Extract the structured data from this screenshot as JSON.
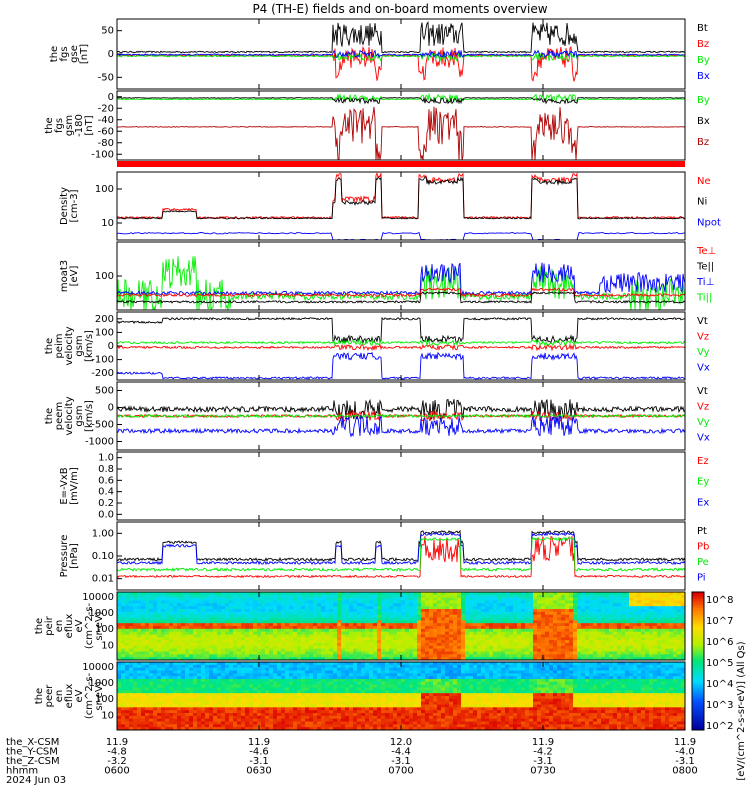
{
  "title": "P4 (TH-E) fields and on-board moments overview",
  "colors": {
    "black": "#000000",
    "red": "#ff0000",
    "green": "#00ee00",
    "blue": "#0000ff",
    "magenta": "#cc00cc",
    "darkred": "#b00000"
  },
  "chart_data": [
    {
      "id": "fgs_gse",
      "type": "line",
      "ylabel": [
        "the",
        "fgs",
        "gse",
        "[nT]"
      ],
      "ylim": [
        -100,
        100
      ],
      "yticks": [
        "50",
        "0",
        "-50"
      ],
      "series": [
        {
          "name": "Bt",
          "color": "#000000"
        },
        {
          "name": "Bz",
          "color": "#ff0000"
        },
        {
          "name": "By",
          "color": "#00ee00"
        },
        {
          "name": "Bx",
          "color": "#0000ff"
        }
      ]
    },
    {
      "id": "fgs_gsm",
      "type": "line",
      "ylabel": [
        "the",
        "fgs",
        "gsm",
        "-180",
        "[nT]"
      ],
      "ylim": [
        -110,
        10
      ],
      "yticks": [
        "0",
        "-20",
        "-40",
        "-60",
        "-80",
        "-100"
      ],
      "series": [
        {
          "name": "By",
          "color": "#00ee00"
        },
        {
          "name": "Bx",
          "color": "#000000"
        },
        {
          "name": "Bz",
          "color": "#b00000"
        }
      ]
    },
    {
      "id": "density",
      "type": "line",
      "log": true,
      "ylabel": [
        "Density",
        "[cm-3]"
      ],
      "ylim": [
        3,
        130
      ],
      "yticks": [
        "100",
        "10"
      ],
      "series": [
        {
          "name": "Ne",
          "color": "#ff0000"
        },
        {
          "name": "Ni",
          "color": "#000000"
        },
        {
          "name": "Npot",
          "color": "#0000ff"
        }
      ]
    },
    {
      "id": "temp",
      "type": "line",
      "log": true,
      "ylabel": [
        "moat3",
        "[eV]"
      ],
      "ylim": [
        20,
        600
      ],
      "yticks": [
        "100"
      ],
      "series": [
        {
          "name": "Te⊥",
          "color": "#ff0000"
        },
        {
          "name": "Te||",
          "color": "#000000"
        },
        {
          "name": "Ti⊥",
          "color": "#0000ff"
        },
        {
          "name": "Ti||",
          "color": "#00ee00"
        }
      ]
    },
    {
      "id": "peim_vel",
      "type": "line",
      "ylabel": [
        "the",
        "peim",
        "velocity",
        "gsm",
        "[km/s]"
      ],
      "ylim": [
        -300,
        300
      ],
      "yticks": [
        "200",
        "100",
        "0",
        "-100",
        "-200"
      ],
      "series": [
        {
          "name": "Vt",
          "color": "#000000"
        },
        {
          "name": "Vz",
          "color": "#ff0000"
        },
        {
          "name": "Vy",
          "color": "#00ee00"
        },
        {
          "name": "Vx",
          "color": "#0000ff"
        }
      ]
    },
    {
      "id": "peem_vel",
      "type": "line",
      "ylabel": [
        "the",
        "peem",
        "velocity",
        "gsm",
        "[km/s]"
      ],
      "ylim": [
        -1500,
        1000
      ],
      "yticks": [
        "500",
        "0",
        "-500",
        "-1000"
      ],
      "series": [
        {
          "name": "Vt",
          "color": "#000000"
        },
        {
          "name": "Vz",
          "color": "#ff0000"
        },
        {
          "name": "Vy",
          "color": "#00ee00"
        },
        {
          "name": "Vx",
          "color": "#0000ff"
        }
      ]
    },
    {
      "id": "efield",
      "type": "line",
      "ylabel": [
        "E=-VxB",
        "[mV/m]"
      ],
      "ylim": [
        0,
        1
      ],
      "yticks": [
        "1.0",
        "0.8",
        "0.6",
        "0.4",
        "0.2",
        "0.0"
      ],
      "series": [
        {
          "name": "Ez",
          "color": "#ff0000"
        },
        {
          "name": "Ey",
          "color": "#00ee00"
        },
        {
          "name": "Ex",
          "color": "#0000ff"
        }
      ]
    },
    {
      "id": "pressure",
      "type": "line",
      "log": true,
      "ylabel": [
        "Pressure",
        "[nPa]"
      ],
      "ylim": [
        0.005,
        2
      ],
      "yticks": [
        "1.00",
        "0.10",
        "0.01"
      ],
      "series": [
        {
          "name": "Pt",
          "color": "#000000"
        },
        {
          "name": "Pb",
          "color": "#ff0000"
        },
        {
          "name": "Pe",
          "color": "#00ee00"
        },
        {
          "name": "Pi",
          "color": "#0000ff"
        }
      ]
    },
    {
      "id": "peir_spec",
      "type": "heatmap",
      "ylabel": [
        "the",
        "peir",
        "en",
        "eflux",
        "eV",
        "(cm^2-s-",
        "sr-eV)"
      ],
      "yticks": [
        "10000",
        "1000",
        "100",
        "10"
      ]
    },
    {
      "id": "peer_spec",
      "type": "heatmap",
      "ylabel": [
        "the",
        "peer",
        "en",
        "eflux",
        "eV",
        "(cm^2-s-",
        "sr-eV)"
      ],
      "yticks": [
        "10000",
        "1000",
        "100",
        "10"
      ]
    }
  ],
  "colorbar": {
    "ticks": [
      "10^8",
      "10^7",
      "10^6",
      "10^5",
      "10^4",
      "10^3",
      "10^2"
    ],
    "label": "[eV/(cm^2-s-sr-eV)] (All Qs)"
  },
  "x_axis": {
    "row_labels": [
      "the_X-CSM",
      "the_Y-CSM",
      "the_Z-CSM",
      "hhmm",
      "2024 Jun 03"
    ],
    "columns": [
      {
        "x": "11.9",
        "y": "-4.8",
        "z": "-3.2",
        "t": "0600"
      },
      {
        "x": "11.9",
        "y": "-4.6",
        "z": "-3.1",
        "t": "0630"
      },
      {
        "x": "12.0",
        "y": "-4.4",
        "z": "-3.1",
        "t": "0700"
      },
      {
        "x": "11.9",
        "y": "-4.2",
        "z": "-3.1",
        "t": "0730"
      },
      {
        "x": "11.9",
        "y": "-4.0",
        "z": "-3.1",
        "t": "0800"
      }
    ]
  }
}
